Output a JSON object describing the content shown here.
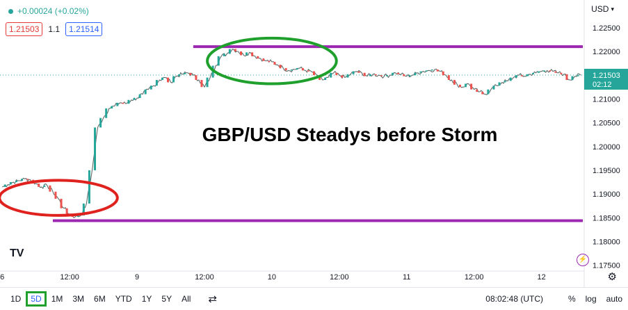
{
  "legend": {
    "change": "+0.00024 (+0.02%)",
    "bid": "1.21503",
    "spread": "1.1",
    "ask": "1.21514"
  },
  "currency": "USD",
  "title": "GBP/USD Steadys before Storm",
  "price_label": {
    "price": "1.21503",
    "countdown": "02:12"
  },
  "bottom_bar": {
    "ranges": [
      "1D",
      "5D",
      "1M",
      "3M",
      "6M",
      "YTD",
      "1Y",
      "5Y",
      "All"
    ],
    "selected": "5D",
    "time": "08:02:48 (UTC)",
    "percent": "%",
    "log": "log",
    "auto": "auto"
  },
  "logo": "TV",
  "colors": {
    "up": "#26a69a",
    "down": "#ef5350",
    "level": "#9c27b0",
    "green_ellipse": "#1fa02c",
    "red_ellipse": "#e0221f",
    "price_line": "#26a69a"
  },
  "chart_data": {
    "type": "line",
    "title": "GBP/USD Steadys before Storm",
    "y_ticks": [
      "1.22500",
      "1.22000",
      "1.21500",
      "1.21000",
      "1.20500",
      "1.20000",
      "1.19500",
      "1.19000",
      "1.18500",
      "1.18000",
      "1.17500"
    ],
    "ylim": [
      1.17379,
      1.22731
    ],
    "x_ticks": [
      {
        "label": "6",
        "x": 0
      },
      {
        "label": "12:00",
        "x": 12
      },
      {
        "label": "9",
        "x": 24
      },
      {
        "label": "12:00",
        "x": 36
      },
      {
        "label": "10",
        "x": 48
      },
      {
        "label": "12:00",
        "x": 60
      },
      {
        "label": "11",
        "x": 72
      },
      {
        "label": "12:00",
        "x": 84
      },
      {
        "label": "12",
        "x": 96
      }
    ],
    "xlim": [
      -0.4,
      103.6
    ],
    "series": [
      {
        "values": [
          [
            0,
            1.1915
          ],
          [
            1,
            1.192
          ],
          [
            2,
            1.1925
          ],
          [
            3,
            1.1928
          ],
          [
            4,
            1.1932
          ],
          [
            5,
            1.193
          ],
          [
            6,
            1.1922
          ],
          [
            7,
            1.1915
          ],
          [
            8,
            1.1918
          ],
          [
            9,
            1.1905
          ],
          [
            10,
            1.189
          ],
          [
            11,
            1.187
          ],
          [
            12,
            1.1858
          ],
          [
            13,
            1.1852
          ],
          [
            14,
            1.1855
          ],
          [
            15,
            1.188
          ],
          [
            16,
            1.195
          ],
          [
            17,
            1.204
          ],
          [
            18,
            1.206
          ],
          [
            19,
            1.208
          ],
          [
            20,
            1.2085
          ],
          [
            21,
            1.2092
          ],
          [
            22,
            1.209
          ],
          [
            23,
            1.2098
          ],
          [
            24,
            1.2102
          ],
          [
            25,
            1.211
          ],
          [
            26,
            1.212
          ],
          [
            27,
            1.2128
          ],
          [
            28,
            1.214
          ],
          [
            29,
            1.2145
          ],
          [
            30,
            1.2135
          ],
          [
            31,
            1.2148
          ],
          [
            32,
            1.2152
          ],
          [
            33,
            1.2155
          ],
          [
            34,
            1.215
          ],
          [
            35,
            1.214
          ],
          [
            36,
            1.2125
          ],
          [
            37,
            1.2145
          ],
          [
            38,
            1.217
          ],
          [
            39,
            1.219
          ],
          [
            40,
            1.2195
          ],
          [
            41,
            1.2205
          ],
          [
            42,
            1.22
          ],
          [
            43,
            1.2192
          ],
          [
            44,
            1.2198
          ],
          [
            45,
            1.219
          ],
          [
            46,
            1.2185
          ],
          [
            47,
            1.218
          ],
          [
            48,
            1.2178
          ],
          [
            49,
            1.2172
          ],
          [
            50,
            1.2165
          ],
          [
            51,
            1.216
          ],
          [
            52,
            1.2162
          ],
          [
            53,
            1.2165
          ],
          [
            54,
            1.216
          ],
          [
            55,
            1.2158
          ],
          [
            56,
            1.215
          ],
          [
            57,
            1.214
          ],
          [
            58,
            1.2145
          ],
          [
            59,
            1.2155
          ],
          [
            60,
            1.215
          ],
          [
            61,
            1.2145
          ],
          [
            62,
            1.2152
          ],
          [
            63,
            1.2158
          ],
          [
            64,
            1.2155
          ],
          [
            65,
            1.2148
          ],
          [
            66,
            1.2152
          ],
          [
            67,
            1.215
          ],
          [
            68,
            1.2148
          ],
          [
            69,
            1.215
          ],
          [
            70,
            1.2155
          ],
          [
            71,
            1.2152
          ],
          [
            72,
            1.2148
          ],
          [
            73,
            1.215
          ],
          [
            74,
            1.2155
          ],
          [
            75,
            1.2158
          ],
          [
            76,
            1.216
          ],
          [
            77,
            1.2162
          ],
          [
            78,
            1.2158
          ],
          [
            79,
            1.215
          ],
          [
            80,
            1.214
          ],
          [
            81,
            1.213
          ],
          [
            82,
            1.2125
          ],
          [
            83,
            1.2132
          ],
          [
            84,
            1.212
          ],
          [
            85,
            1.2115
          ],
          [
            86,
            1.211
          ],
          [
            87,
            1.212
          ],
          [
            88,
            1.2128
          ],
          [
            89,
            1.2135
          ],
          [
            90,
            1.2138
          ],
          [
            91,
            1.2145
          ],
          [
            92,
            1.215
          ],
          [
            93,
            1.2148
          ],
          [
            94,
            1.2152
          ],
          [
            95,
            1.2155
          ],
          [
            96,
            1.2158
          ],
          [
            97,
            1.216
          ],
          [
            98,
            1.2158
          ],
          [
            99,
            1.2155
          ],
          [
            100,
            1.2152
          ],
          [
            101,
            1.214
          ],
          [
            102,
            1.2148
          ],
          [
            103,
            1.215
          ]
        ]
      }
    ],
    "levels": [
      1.221,
      1.1844
    ],
    "current_price": 1.21503,
    "ellipses": [
      {
        "color": "red",
        "x_center": 10,
        "y_center": 1.1892,
        "x_radius": 10.5,
        "y_radius": 0.0037
      },
      {
        "color": "green",
        "x_center": 48,
        "y_center": 1.218,
        "x_radius": 11.5,
        "y_radius": 0.0048
      }
    ]
  }
}
